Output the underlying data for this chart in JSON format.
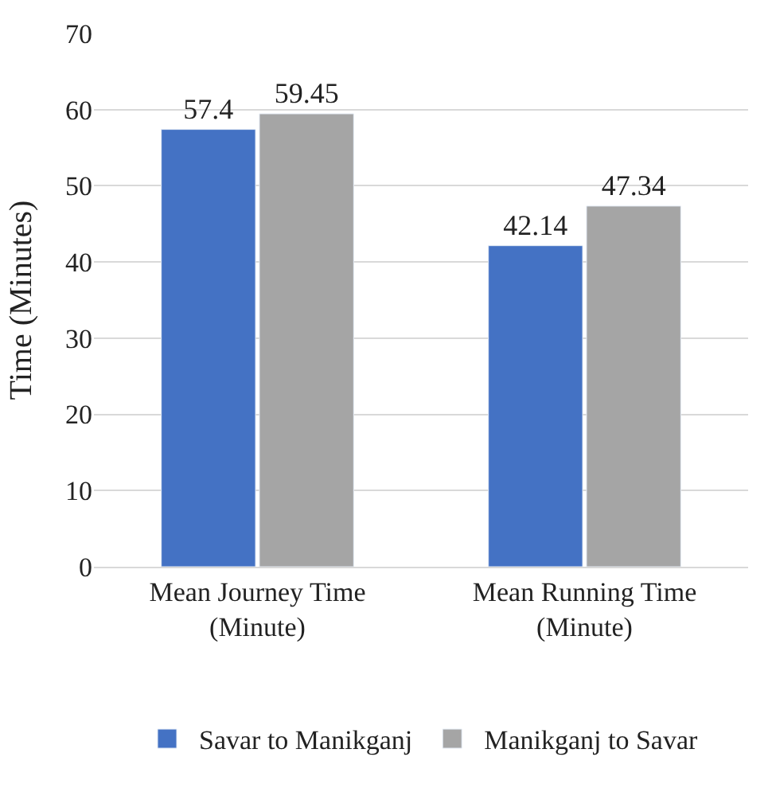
{
  "chart_data": {
    "type": "bar",
    "ylabel": "Time (Minutes)",
    "categories": [
      "Mean Journey Time\n(Minute)",
      "Mean Running Time\n(Minute)"
    ],
    "series": [
      {
        "name": "Savar to Manikganj",
        "color": "#4472c4",
        "values": [
          57.4,
          42.14
        ]
      },
      {
        "name": "Manikganj to Savar",
        "color": "#a5a5a5",
        "values": [
          59.45,
          47.34
        ]
      }
    ],
    "ylim": [
      0,
      70
    ],
    "yticks": [
      0,
      10,
      20,
      30,
      40,
      50,
      60,
      70
    ],
    "grid": "y",
    "legend": "bottom",
    "data_labels": true
  }
}
